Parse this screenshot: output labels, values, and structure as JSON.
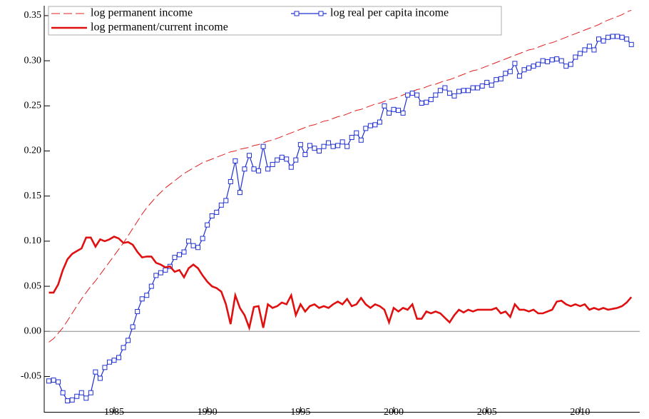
{
  "chart_data": {
    "type": "line",
    "legend": "upper left",
    "zero_line": true,
    "xlim": [
      1981.25,
      2013.2
    ],
    "ylim": [
      -0.09,
      0.361
    ],
    "xticks": [
      1985,
      1990,
      1995,
      2000,
      2005,
      2010
    ],
    "yticks": [
      {
        "value": -0.05,
        "label": "-0.05"
      },
      {
        "value": 0,
        "label": "0.00"
      },
      {
        "value": 0.05,
        "label": "0.05"
      },
      {
        "value": 0.1,
        "label": "0.10"
      },
      {
        "value": 0.15,
        "label": "0.15"
      },
      {
        "value": 0.2,
        "label": "0.20"
      },
      {
        "value": 0.25,
        "label": "0.25"
      },
      {
        "value": 0.3,
        "label": "0.30"
      },
      {
        "value": 0.35,
        "label": "0.35"
      }
    ],
    "x": [
      1981.5,
      1981.75,
      1982,
      1982.25,
      1982.5,
      1982.75,
      1983,
      1983.25,
      1983.5,
      1983.75,
      1984,
      1984.25,
      1984.5,
      1984.75,
      1985,
      1985.25,
      1985.5,
      1985.75,
      1986,
      1986.25,
      1986.5,
      1986.75,
      1987,
      1987.25,
      1987.5,
      1987.75,
      1988,
      1988.25,
      1988.5,
      1988.75,
      1989,
      1989.25,
      1989.5,
      1989.75,
      1990,
      1990.25,
      1990.5,
      1990.75,
      1991,
      1991.25,
      1991.5,
      1991.75,
      1992,
      1992.25,
      1992.5,
      1992.75,
      1993,
      1993.25,
      1993.5,
      1993.75,
      1994,
      1994.25,
      1994.5,
      1994.75,
      1995,
      1995.25,
      1995.5,
      1995.75,
      1996,
      1996.25,
      1996.5,
      1996.75,
      1997,
      1997.25,
      1997.5,
      1997.75,
      1998,
      1998.25,
      1998.5,
      1998.75,
      1999,
      1999.25,
      1999.5,
      1999.75,
      2000,
      2000.25,
      2000.5,
      2000.75,
      2001,
      2001.25,
      2001.5,
      2001.75,
      2002,
      2002.25,
      2002.5,
      2002.75,
      2003,
      2003.25,
      2003.5,
      2003.75,
      2004,
      2004.25,
      2004.5,
      2004.75,
      2005,
      2005.25,
      2005.5,
      2005.75,
      2006,
      2006.25,
      2006.5,
      2006.75,
      2007,
      2007.25,
      2007.5,
      2007.75,
      2008,
      2008.25,
      2008.5,
      2008.75,
      2009,
      2009.25,
      2009.5,
      2009.75,
      2010,
      2010.25,
      2010.5,
      2010.75,
      2011,
      2011.25,
      2011.5,
      2011.75,
      2012,
      2012.25,
      2012.5,
      2012.75
    ],
    "series": [
      {
        "name": "log permanent income",
        "color": "#e02020",
        "line_style": "dashed",
        "values": [
          -0.012,
          -0.008,
          -0.002,
          0.004,
          0.012,
          0.02,
          0.028,
          0.036,
          0.043,
          0.05,
          0.056,
          0.063,
          0.07,
          0.077,
          0.084,
          0.091,
          0.098,
          0.106,
          0.114,
          0.122,
          0.13,
          0.137,
          0.143,
          0.149,
          0.154,
          0.159,
          0.163,
          0.167,
          0.171,
          0.175,
          0.178,
          0.181,
          0.184,
          0.187,
          0.189,
          0.191,
          0.193,
          0.195,
          0.197,
          0.199,
          0.2,
          0.202,
          0.203,
          0.204,
          0.206,
          0.207,
          0.209,
          0.211,
          0.212,
          0.214,
          0.216,
          0.218,
          0.22,
          0.222,
          0.224,
          0.226,
          0.228,
          0.229,
          0.231,
          0.233,
          0.234,
          0.236,
          0.238,
          0.239,
          0.241,
          0.243,
          0.245,
          0.246,
          0.248,
          0.25,
          0.252,
          0.253,
          0.255,
          0.257,
          0.258,
          0.26,
          0.262,
          0.264,
          0.266,
          0.268,
          0.269,
          0.271,
          0.273,
          0.274,
          0.276,
          0.278,
          0.279,
          0.281,
          0.283,
          0.285,
          0.287,
          0.289,
          0.29,
          0.292,
          0.294,
          0.296,
          0.298,
          0.3,
          0.302,
          0.304,
          0.306,
          0.308,
          0.31,
          0.312,
          0.313,
          0.315,
          0.317,
          0.319,
          0.32,
          0.322,
          0.324,
          0.326,
          0.328,
          0.33,
          0.332,
          0.334,
          0.336,
          0.338,
          0.34,
          0.343,
          0.345,
          0.347,
          0.349,
          0.351,
          0.354,
          0.356
        ]
      },
      {
        "name": "log real per capita income",
        "color": "#2030d0",
        "line_style": "solid",
        "marker": "square",
        "values": [
          -0.055,
          -0.054,
          -0.056,
          -0.068,
          -0.077,
          -0.076,
          -0.072,
          -0.068,
          -0.074,
          -0.068,
          -0.045,
          -0.052,
          -0.04,
          -0.034,
          -0.032,
          -0.029,
          -0.018,
          -0.01,
          0.005,
          0.022,
          0.036,
          0.04,
          0.05,
          0.062,
          0.065,
          0.068,
          0.072,
          0.082,
          0.085,
          0.088,
          0.1,
          0.095,
          0.093,
          0.103,
          0.118,
          0.128,
          0.132,
          0.14,
          0.145,
          0.166,
          0.189,
          0.154,
          0.18,
          0.195,
          0.18,
          0.178,
          0.205,
          0.18,
          0.185,
          0.19,
          0.193,
          0.191,
          0.182,
          0.19,
          0.207,
          0.196,
          0.206,
          0.203,
          0.2,
          0.205,
          0.209,
          0.205,
          0.206,
          0.21,
          0.205,
          0.215,
          0.22,
          0.212,
          0.225,
          0.228,
          0.229,
          0.232,
          0.25,
          0.242,
          0.246,
          0.245,
          0.242,
          0.262,
          0.264,
          0.262,
          0.253,
          0.254,
          0.257,
          0.262,
          0.267,
          0.27,
          0.264,
          0.261,
          0.266,
          0.267,
          0.267,
          0.27,
          0.27,
          0.272,
          0.276,
          0.273,
          0.279,
          0.28,
          0.286,
          0.288,
          0.297,
          0.283,
          0.29,
          0.292,
          0.294,
          0.296,
          0.3,
          0.299,
          0.301,
          0.302,
          0.3,
          0.294,
          0.296,
          0.304,
          0.308,
          0.312,
          0.316,
          0.312,
          0.324,
          0.322,
          0.326,
          0.327,
          0.327,
          0.326,
          0.324,
          0.318
        ]
      },
      {
        "name": "log permanent/current income",
        "color": "#e01010",
        "line_style": "thick",
        "values": [
          0.043,
          0.043,
          0.052,
          0.068,
          0.08,
          0.086,
          0.089,
          0.092,
          0.104,
          0.104,
          0.094,
          0.102,
          0.1,
          0.102,
          0.105,
          0.103,
          0.098,
          0.099,
          0.096,
          0.088,
          0.082,
          0.083,
          0.083,
          0.076,
          0.074,
          0.071,
          0.072,
          0.066,
          0.068,
          0.06,
          0.07,
          0.074,
          0.07,
          0.062,
          0.055,
          0.05,
          0.048,
          0.044,
          0.03,
          0.008,
          0.04,
          0.026,
          0.018,
          0.004,
          0.027,
          0.028,
          0.004,
          0.03,
          0.026,
          0.028,
          0.032,
          0.03,
          0.04,
          0.018,
          0.03,
          0.022,
          0.028,
          0.03,
          0.026,
          0.028,
          0.026,
          0.03,
          0.033,
          0.03,
          0.036,
          0.028,
          0.03,
          0.037,
          0.03,
          0.026,
          0.03,
          0.028,
          0.024,
          0.01,
          0.026,
          0.022,
          0.026,
          0.024,
          0.03,
          0.014,
          0.014,
          0.022,
          0.02,
          0.022,
          0.02,
          0.015,
          0.01,
          0.018,
          0.024,
          0.021,
          0.024,
          0.022,
          0.024,
          0.024,
          0.024,
          0.024,
          0.026,
          0.02,
          0.022,
          0.016,
          0.03,
          0.024,
          0.024,
          0.022,
          0.024,
          0.02,
          0.02,
          0.022,
          0.024,
          0.033,
          0.034,
          0.03,
          0.028,
          0.03,
          0.028,
          0.03,
          0.024,
          0.026,
          0.024,
          0.026,
          0.024,
          0.025,
          0.026,
          0.028,
          0.032,
          0.038
        ]
      }
    ]
  }
}
